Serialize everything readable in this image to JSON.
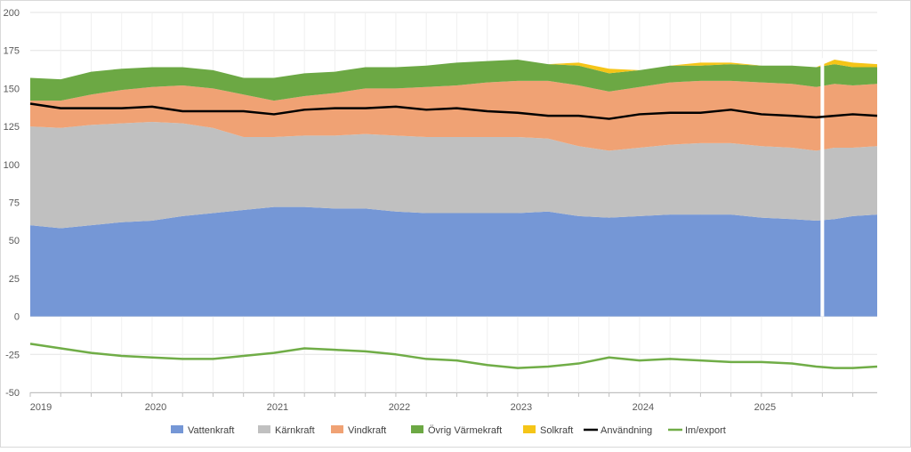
{
  "chart_data": {
    "type": "area",
    "title": "",
    "xlabel": "",
    "ylabel": "",
    "ylim": [
      -50,
      200
    ],
    "y_ticks": [
      "200",
      "175",
      "150",
      "125",
      "100",
      "75",
      "50",
      "25",
      "0",
      "-25",
      "-50"
    ],
    "y_tick_values": [
      200,
      175,
      150,
      125,
      100,
      75,
      50,
      25,
      0,
      -25,
      -50
    ],
    "x_tick_labels": [
      "2019",
      "2020",
      "2021",
      "2022",
      "2023",
      "2024",
      "2025"
    ],
    "x_tick_years": [
      2019,
      2020,
      2021,
      2022,
      2023,
      2024,
      2025
    ],
    "xlim": [
      2019.0,
      2025.95
    ],
    "grid": true,
    "legend_position": "bottom",
    "x": [
      2019.0,
      2019.25,
      2019.5,
      2019.75,
      2020.0,
      2020.25,
      2020.5,
      2020.75,
      2021.0,
      2021.25,
      2021.5,
      2021.75,
      2022.0,
      2022.25,
      2022.5,
      2022.75,
      2023.0,
      2023.25,
      2023.5,
      2023.75,
      2024.0,
      2024.25,
      2024.5,
      2024.75,
      2025.0,
      2025.25,
      2025.45,
      2025.6,
      2025.75,
      2025.95
    ],
    "gap_x": 2025.5,
    "series": [
      {
        "name": "Vattenkraft",
        "color": "#7597d6",
        "kind": "area",
        "values": [
          60,
          58,
          60,
          62,
          63,
          66,
          68,
          70,
          72,
          72,
          71,
          71,
          69,
          68,
          68,
          68,
          68,
          69,
          66,
          65,
          66,
          67,
          67,
          67,
          65,
          64,
          63,
          64,
          66,
          67
        ]
      },
      {
        "name": "Kärnkraft",
        "color": "#c0c0c0",
        "kind": "area",
        "values": [
          65,
          66,
          66,
          65,
          65,
          61,
          56,
          48,
          46,
          47,
          48,
          49,
          50,
          50,
          50,
          50,
          50,
          48,
          46,
          44,
          45,
          46,
          47,
          47,
          47,
          47,
          46,
          47,
          45,
          45
        ]
      },
      {
        "name": "Vindkraft",
        "color": "#f0a274",
        "kind": "area",
        "values": [
          17,
          18,
          20,
          22,
          23,
          25,
          26,
          28,
          24,
          26,
          28,
          30,
          31,
          33,
          34,
          36,
          37,
          38,
          40,
          39,
          40,
          41,
          41,
          41,
          42,
          42,
          42,
          42,
          41,
          41
        ]
      },
      {
        "name": "Övrig Värmekraft",
        "color": "#6ca844",
        "kind": "area",
        "values": [
          15,
          14,
          15,
          14,
          13,
          12,
          12,
          11,
          15,
          15,
          14,
          14,
          14,
          14,
          15,
          14,
          14,
          11,
          13,
          12,
          11,
          11,
          10,
          11,
          11,
          12,
          13,
          13,
          12,
          11
        ]
      },
      {
        "name": "Solkraft",
        "color": "#f5c518",
        "kind": "area",
        "values": [
          0,
          0,
          0,
          0,
          0,
          0,
          0,
          0,
          0,
          0,
          0,
          0,
          0,
          0,
          0,
          0,
          0,
          0,
          2,
          3,
          0,
          0,
          2,
          1,
          0,
          0,
          0,
          3,
          3,
          2
        ]
      },
      {
        "name": "Användning",
        "color": "#000000",
        "kind": "line",
        "values": [
          140,
          137,
          137,
          137,
          138,
          135,
          135,
          135,
          133,
          136,
          137,
          137,
          138,
          136,
          137,
          135,
          134,
          132,
          132,
          130,
          133,
          134,
          134,
          136,
          133,
          132,
          131,
          132,
          133,
          132
        ]
      },
      {
        "name": "Im/export",
        "color": "#70ad47",
        "kind": "line",
        "values": [
          -18,
          -21,
          -24,
          -26,
          -27,
          -28,
          -28,
          -26,
          -24,
          -21,
          -22,
          -23,
          -25,
          -28,
          -29,
          -32,
          -34,
          -33,
          -31,
          -27,
          -29,
          -28,
          -29,
          -30,
          -30,
          -31,
          -33,
          -34,
          -34,
          -33
        ]
      }
    ]
  }
}
